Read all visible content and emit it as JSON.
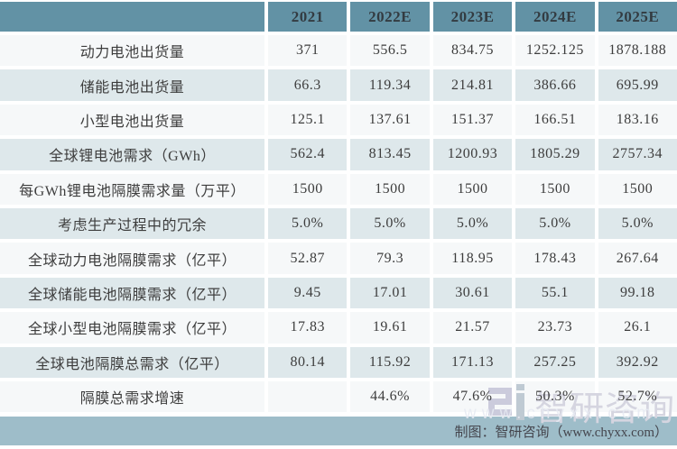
{
  "chart_data": {
    "type": "table",
    "columns": [
      "",
      "2021",
      "2022E",
      "2023E",
      "2024E",
      "2025E"
    ],
    "rows": [
      {
        "label": "动力电池出货量",
        "values": [
          "371",
          "556.5",
          "834.75",
          "1252.125",
          "1878.188"
        ]
      },
      {
        "label": "储能电池出货量",
        "values": [
          "66.3",
          "119.34",
          "214.81",
          "386.66",
          "695.99"
        ]
      },
      {
        "label": "小型电池出货量",
        "values": [
          "125.1",
          "137.61",
          "151.37",
          "166.51",
          "183.16"
        ]
      },
      {
        "label": "全球锂电池需求（GWh）",
        "values": [
          "562.4",
          "813.45",
          "1200.93",
          "1805.29",
          "2757.34"
        ]
      },
      {
        "label": "每GWh锂电池隔膜需求量（万平）",
        "values": [
          "1500",
          "1500",
          "1500",
          "1500",
          "1500"
        ]
      },
      {
        "label": "考虑生产过程中的冗余",
        "values": [
          "5.0%",
          "5.0%",
          "5.0%",
          "5.0%",
          "5.0%"
        ]
      },
      {
        "label": "全球动力电池隔膜需求（亿平）",
        "values": [
          "52.87",
          "79.3",
          "118.95",
          "178.43",
          "267.64"
        ]
      },
      {
        "label": "全球储能电池隔膜需求（亿平）",
        "values": [
          "9.45",
          "17.01",
          "30.61",
          "55.1",
          "99.18"
        ]
      },
      {
        "label": "全球小型电池隔膜需求（亿平）",
        "values": [
          "17.83",
          "19.61",
          "21.57",
          "23.73",
          "26.1"
        ]
      },
      {
        "label": "全球电池隔膜总需求（亿平）",
        "values": [
          "80.14",
          "115.92",
          "171.13",
          "257.25",
          "392.92"
        ]
      },
      {
        "label": "隔膜总需求增速",
        "values": [
          "",
          "44.6%",
          "47.6%",
          "50.3%",
          "52.7%"
        ]
      }
    ]
  },
  "footer": {
    "credit": "制图：智研咨询（www.chyxx.com）"
  },
  "watermark": {
    "logo_icon": "zhiyan-logo-icon",
    "brand": "智研咨询",
    "url": "www.chyxx.com"
  },
  "colors": {
    "header_bg": "#6292A5",
    "row_shaded": "#DEE8EB",
    "row_light": "#F6F8F9",
    "footer_bg": "#9EBDC9",
    "cell_text": "#3D3D3D"
  }
}
